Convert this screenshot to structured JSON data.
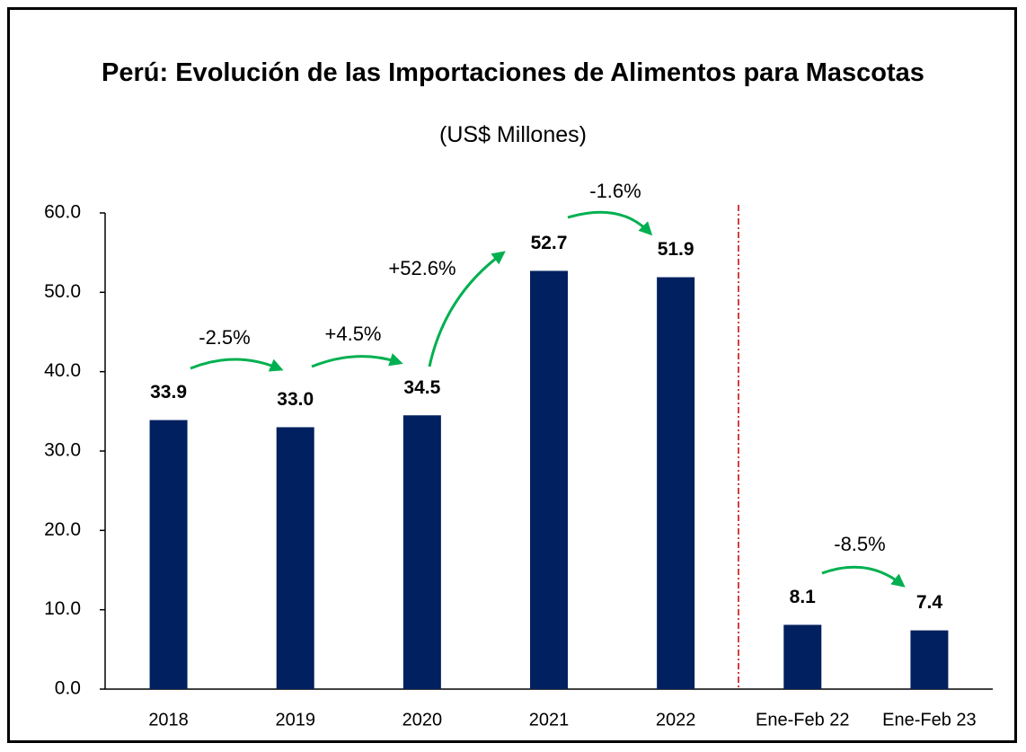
{
  "chart_data": {
    "type": "bar",
    "title": "Perú: Evolución de las Importaciones de Alimentos para Mascotas",
    "subtitle": "(US$ Millones)",
    "categories": [
      "2018",
      "2019",
      "2020",
      "2021",
      "2022",
      "Ene-Feb 22",
      "Ene-Feb 23"
    ],
    "values": [
      33.9,
      33.0,
      34.5,
      52.7,
      51.9,
      8.1,
      7.4
    ],
    "value_labels": [
      "33.9",
      "33.0",
      "34.5",
      "52.7",
      "51.9",
      "8.1",
      "7.4"
    ],
    "color": "#002060",
    "ylim": [
      0,
      60
    ],
    "yticks": [
      {
        "value": 0,
        "label": "0.0"
      },
      {
        "value": 10,
        "label": "10.0"
      },
      {
        "value": 20,
        "label": "20.0"
      },
      {
        "value": 30,
        "label": "30.0"
      },
      {
        "value": 40,
        "label": "40.0"
      },
      {
        "value": 50,
        "label": "50.0"
      },
      {
        "value": 60,
        "label": "60.0"
      }
    ],
    "grid": false,
    "annotations": [
      {
        "text": "-2.5%"
      },
      {
        "text": "+4.5%"
      },
      {
        "text": "+52.6%"
      },
      {
        "text": "-1.6%"
      },
      {
        "text": "-8.5%"
      }
    ]
  }
}
